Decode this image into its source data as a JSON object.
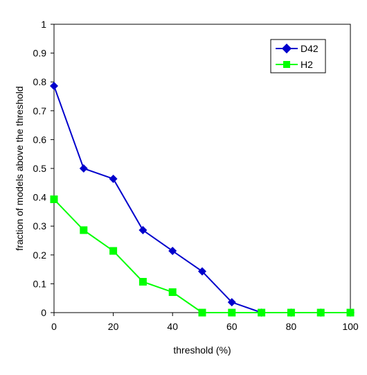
{
  "chart_data": {
    "type": "line",
    "title": "",
    "xlabel": "threshold (%)",
    "ylabel": "fraction of models above the threshold",
    "xlim": [
      0,
      100
    ],
    "ylim": [
      0,
      1
    ],
    "x_ticks": [
      0,
      20,
      40,
      60,
      80,
      100
    ],
    "y_ticks": [
      0,
      0.1,
      0.2,
      0.3,
      0.4,
      0.5,
      0.6,
      0.7,
      0.8,
      0.9,
      1
    ],
    "x": [
      0,
      10,
      20,
      30,
      40,
      50,
      60,
      70,
      80,
      90,
      100
    ],
    "series": [
      {
        "name": "D42",
        "color": "#0000cc",
        "marker": "diamond",
        "values": [
          0.786,
          0.5,
          0.464,
          0.286,
          0.214,
          0.143,
          0.036,
          0,
          0,
          0,
          0
        ]
      },
      {
        "name": "H2",
        "color": "#00ff00",
        "marker": "square",
        "values": [
          0.393,
          0.286,
          0.214,
          0.107,
          0.071,
          0,
          0,
          0,
          0,
          0,
          0
        ]
      }
    ],
    "grid": false,
    "legend_position": "top-right"
  }
}
